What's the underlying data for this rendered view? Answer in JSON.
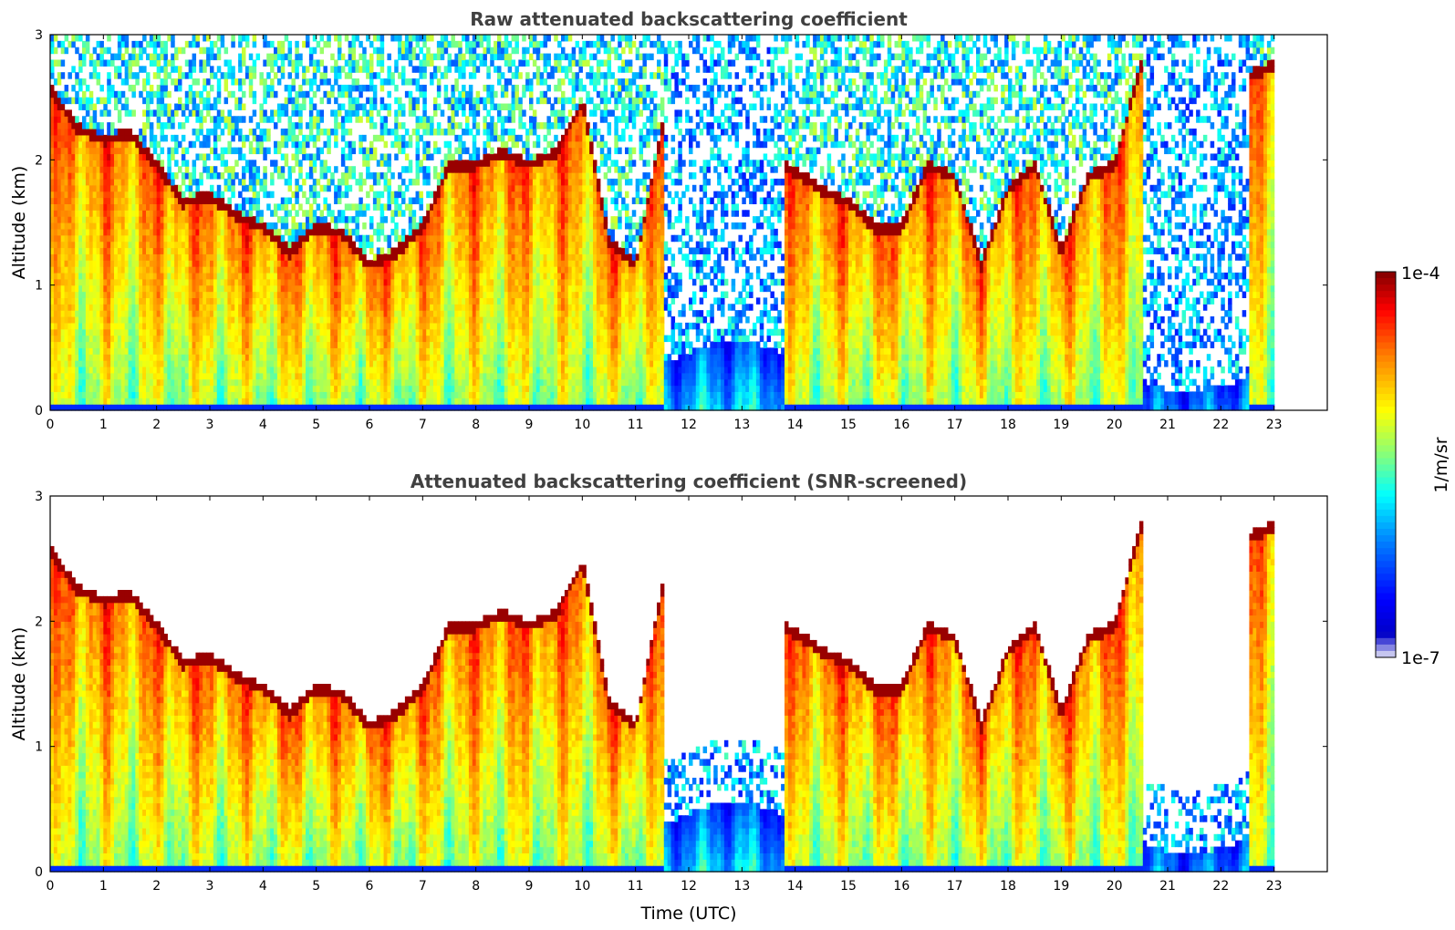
{
  "chart_data": [
    {
      "type": "heatmap",
      "title": "Raw attenuated backscattering coefficient",
      "xlabel": "",
      "ylabel": "Altitude (km)",
      "xlim": [
        0,
        24
      ],
      "ylim": [
        0,
        3
      ],
      "xticks": [
        "0",
        "1",
        "2",
        "3",
        "4",
        "5",
        "6",
        "7",
        "8",
        "9",
        "10",
        "11",
        "12",
        "13",
        "14",
        "15",
        "16",
        "17",
        "18",
        "19",
        "20",
        "21",
        "22",
        "23"
      ],
      "yticks": [
        "0",
        "1",
        "2",
        "3"
      ],
      "screened": false,
      "data_end_hour": 23,
      "layer_top_km": [
        [
          0.0,
          2.6
        ],
        [
          0.5,
          2.3
        ],
        [
          1.0,
          2.2
        ],
        [
          1.5,
          2.25
        ],
        [
          2.0,
          2.0
        ],
        [
          2.5,
          1.7
        ],
        [
          3.0,
          1.75
        ],
        [
          3.5,
          1.6
        ],
        [
          4.0,
          1.5
        ],
        [
          4.5,
          1.3
        ],
        [
          5.0,
          1.5
        ],
        [
          5.5,
          1.45
        ],
        [
          6.0,
          1.2
        ],
        [
          6.5,
          1.3
        ],
        [
          7.0,
          1.5
        ],
        [
          7.5,
          2.0
        ],
        [
          8.0,
          2.0
        ],
        [
          8.5,
          2.1
        ],
        [
          9.0,
          2.0
        ],
        [
          9.5,
          2.1
        ],
        [
          10.0,
          2.5
        ],
        [
          10.5,
          1.4
        ],
        [
          11.0,
          1.2
        ],
        [
          11.5,
          2.3
        ],
        [
          12.0,
          null
        ],
        [
          13.0,
          null
        ],
        [
          13.8,
          2.0
        ],
        [
          14.5,
          1.8
        ],
        [
          15.0,
          1.7
        ],
        [
          15.5,
          1.5
        ],
        [
          16.0,
          1.5
        ],
        [
          16.5,
          2.0
        ],
        [
          17.0,
          1.9
        ],
        [
          17.5,
          1.2
        ],
        [
          18.0,
          1.8
        ],
        [
          18.5,
          2.0
        ],
        [
          19.0,
          1.3
        ],
        [
          19.5,
          1.9
        ],
        [
          20.0,
          2.0
        ],
        [
          20.5,
          2.8
        ],
        [
          21.0,
          null
        ],
        [
          22.0,
          null
        ],
        [
          22.5,
          2.7
        ],
        [
          23.0,
          2.8
        ]
      ]
    },
    {
      "type": "heatmap",
      "title": "Attenuated backscattering coefficient (SNR-screened)",
      "xlabel": "Time (UTC)",
      "ylabel": "Altitude (km)",
      "xlim": [
        0,
        24
      ],
      "ylim": [
        0,
        3
      ],
      "xticks": [
        "0",
        "1",
        "2",
        "3",
        "4",
        "5",
        "6",
        "7",
        "8",
        "9",
        "10",
        "11",
        "12",
        "13",
        "14",
        "15",
        "16",
        "17",
        "18",
        "19",
        "20",
        "21",
        "22",
        "23"
      ],
      "yticks": [
        "0",
        "1",
        "2",
        "3"
      ],
      "screened": true,
      "data_end_hour": 23
    }
  ],
  "colorbar": {
    "max_label": "1e-4",
    "min_label": "1e-7",
    "unit_label": "1/m/sr",
    "colormap": "jet",
    "colors": [
      "#e6e6f5",
      "#0000c8",
      "#0000ff",
      "#0080ff",
      "#00ffff",
      "#80ff80",
      "#ffff00",
      "#ff8000",
      "#ff0000",
      "#800000"
    ]
  }
}
